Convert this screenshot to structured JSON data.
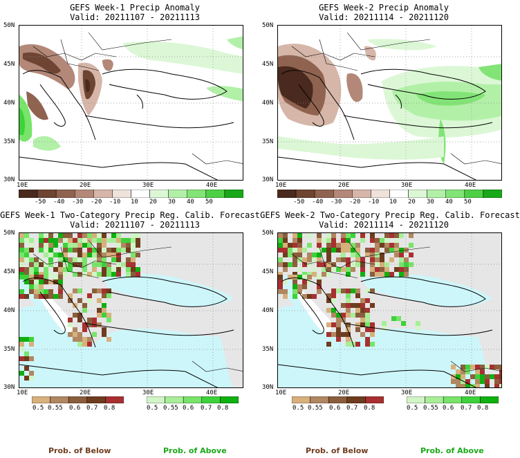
{
  "panels": [
    {
      "title": "GEFS Week-1 Precip Anomaly",
      "valid": "Valid: 20211107 - 20211113"
    },
    {
      "title": "GEFS Week-2 Precip Anomaly",
      "valid": "Valid: 20211114 - 20211120"
    },
    {
      "title": "GEFS Week-1 Two-Category Precip Reg. Calib. Forecast",
      "valid": "Valid: 20211107 - 20211113"
    },
    {
      "title": "GEFS Week-2 Two-Category Precip Reg. Calib. Forecast",
      "valid": "Valid: 20211114 - 20211120"
    }
  ],
  "axes": {
    "lat_labels": [
      "50N",
      "45N",
      "40N",
      "35N",
      "30N"
    ],
    "lon_labels": [
      "10E",
      "20E",
      "30E",
      "40E"
    ]
  },
  "anomaly_colorbar": {
    "labels": [
      "-50",
      "-40",
      "-30",
      "-20",
      "-10",
      "10",
      "20",
      "30",
      "40",
      "50"
    ],
    "colors": [
      "#4a2a1e",
      "#6e4432",
      "#8f6350",
      "#b38878",
      "#d6b6a8",
      "#efe2da",
      "#ffffff",
      "#dcf7d6",
      "#b2f0a8",
      "#82e476",
      "#4ed044",
      "#18a818"
    ]
  },
  "prob_colorbars": {
    "below": {
      "labels": [
        "0.5",
        "0.55",
        "0.6",
        "0.7",
        "0.8"
      ],
      "colors": [
        "#d8b07c",
        "#b08760",
        "#8a5e3c",
        "#6e3c1e",
        "#a83030"
      ]
    },
    "above": {
      "labels": [
        "0.5",
        "0.55",
        "0.6",
        "0.7",
        "0.8"
      ],
      "colors": [
        "#d2f5c8",
        "#a8ee98",
        "#78e46a",
        "#3ed23a",
        "#10b010"
      ]
    }
  },
  "footer": {
    "below_label": "Prob. of Below",
    "above_label": "Prob. of Above",
    "below_color": "#6e3c1e",
    "above_color": "#18a818"
  },
  "map_colors": {
    "sea": "#cdf6fa",
    "land_noskill": "#e6e6e6",
    "coast": "#000000",
    "grid": "#888888"
  }
}
